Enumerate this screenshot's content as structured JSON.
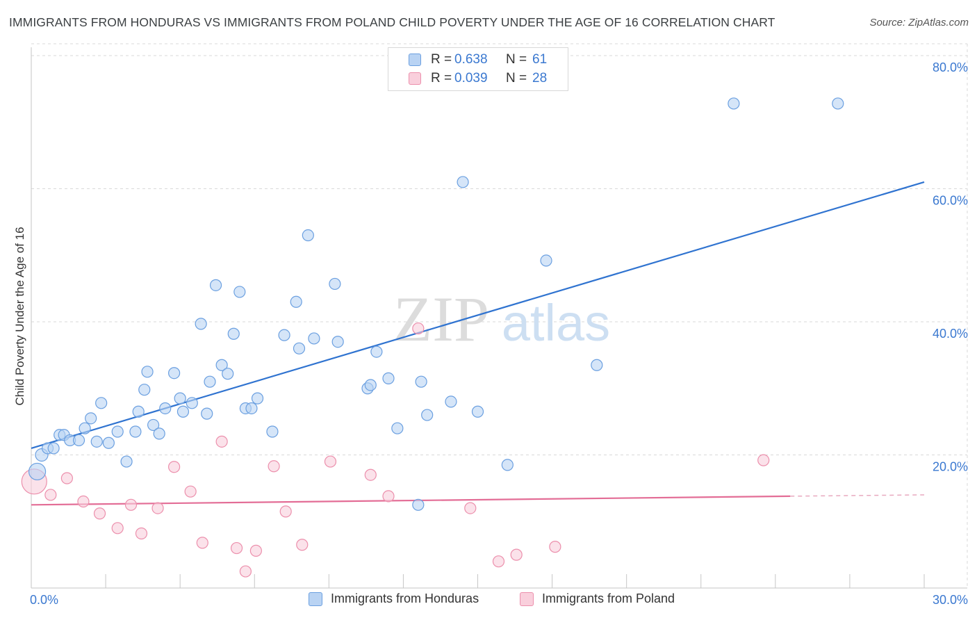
{
  "title": "IMMIGRANTS FROM HONDURAS VS IMMIGRANTS FROM POLAND CHILD POVERTY UNDER THE AGE OF 16 CORRELATION CHART",
  "source": "Source: ZipAtlas.com",
  "watermark": {
    "zip": "ZIP",
    "atlas": "atlas"
  },
  "colors": {
    "honduras_fill": "#b9d3f3",
    "honduras_stroke": "#6a9fe0",
    "honduras_line": "#2f73d0",
    "poland_fill": "#f9cfdc",
    "poland_stroke": "#ec8fac",
    "poland_line": "#e36d96",
    "grid": "#d9d9d9",
    "axis_text": "#3a78d0"
  },
  "legend_top": [
    {
      "r_label": "R =",
      "r_value": "0.638",
      "n_label": "N =",
      "n_value": "61"
    },
    {
      "r_label": "R =",
      "r_value": "0.039",
      "n_label": "N =",
      "n_value": "28"
    }
  ],
  "chart_data": {
    "type": "scatter",
    "title": "IMMIGRANTS FROM HONDURAS VS IMMIGRANTS FROM POLAND CHILD POVERTY UNDER THE AGE OF 16 CORRELATION CHART",
    "xlabel": "",
    "ylabel": "Child Poverty Under the Age of 16",
    "xlim": [
      0,
      30
    ],
    "ylim": [
      0,
      82
    ],
    "x_tick_labels": [
      {
        "value": 0,
        "label": "0.0%"
      },
      {
        "value": 30,
        "label": "30.0%"
      }
    ],
    "y_tick_labels": [
      {
        "value": 20,
        "label": "20.0%"
      },
      {
        "value": 40,
        "label": "40.0%"
      },
      {
        "value": 60,
        "label": "60.0%"
      },
      {
        "value": 80,
        "label": "80.0%"
      }
    ],
    "grid": true,
    "legend_position": "bottom",
    "series": [
      {
        "name": "Immigrants from Honduras",
        "r": 0.638,
        "n": 61,
        "trend": {
          "x0": 0,
          "y0": 21.0,
          "x1": 30,
          "y1": 61.0
        },
        "points": [
          [
            0.2,
            17.5,
            12
          ],
          [
            0.35,
            20.0,
            9
          ],
          [
            0.55,
            21.0,
            8
          ],
          [
            0.75,
            21.0,
            8
          ],
          [
            0.95,
            23.0,
            8
          ],
          [
            1.1,
            23.0,
            8
          ],
          [
            1.3,
            22.2,
            8
          ],
          [
            1.6,
            22.2,
            8
          ],
          [
            1.8,
            24.0,
            8
          ],
          [
            2.0,
            25.5,
            8
          ],
          [
            2.2,
            22.0,
            8
          ],
          [
            2.35,
            27.8,
            8
          ],
          [
            2.6,
            21.8,
            8
          ],
          [
            2.9,
            23.5,
            8
          ],
          [
            3.2,
            19.0,
            8
          ],
          [
            3.5,
            23.5,
            8
          ],
          [
            3.6,
            26.5,
            8
          ],
          [
            3.8,
            29.8,
            8
          ],
          [
            3.9,
            32.5,
            8
          ],
          [
            4.1,
            24.5,
            8
          ],
          [
            4.3,
            23.2,
            8
          ],
          [
            4.5,
            27.0,
            8
          ],
          [
            4.8,
            32.3,
            8
          ],
          [
            5.0,
            28.5,
            8
          ],
          [
            5.1,
            26.5,
            8
          ],
          [
            5.4,
            27.8,
            8
          ],
          [
            5.7,
            39.7,
            8
          ],
          [
            5.9,
            26.2,
            8
          ],
          [
            6.0,
            31.0,
            8
          ],
          [
            6.2,
            45.5,
            8
          ],
          [
            6.4,
            33.5,
            8
          ],
          [
            6.6,
            32.2,
            8
          ],
          [
            6.8,
            38.2,
            8
          ],
          [
            7.0,
            44.5,
            8
          ],
          [
            7.2,
            27.0,
            8
          ],
          [
            7.4,
            27.0,
            8
          ],
          [
            7.6,
            28.5,
            8
          ],
          [
            8.1,
            23.5,
            8
          ],
          [
            8.5,
            38.0,
            8
          ],
          [
            8.9,
            43.0,
            8
          ],
          [
            9.0,
            36.0,
            8
          ],
          [
            9.3,
            53.0,
            8
          ],
          [
            9.5,
            37.5,
            8
          ],
          [
            10.2,
            45.7,
            8
          ],
          [
            10.3,
            37.0,
            8
          ],
          [
            11.3,
            30.0,
            8
          ],
          [
            11.4,
            30.5,
            8
          ],
          [
            11.6,
            35.5,
            8
          ],
          [
            12.0,
            31.5,
            8
          ],
          [
            12.3,
            24.0,
            8
          ],
          [
            13.0,
            12.5,
            8
          ],
          [
            13.1,
            31.0,
            8
          ],
          [
            13.3,
            26.0,
            8
          ],
          [
            14.1,
            28.0,
            8
          ],
          [
            14.5,
            61.0,
            8
          ],
          [
            15.0,
            26.5,
            8
          ],
          [
            16.0,
            18.5,
            8
          ],
          [
            17.3,
            49.2,
            8
          ],
          [
            19.0,
            33.5,
            8
          ],
          [
            23.6,
            72.8,
            8
          ],
          [
            27.1,
            72.8,
            8
          ]
        ]
      },
      {
        "name": "Immigrants from Poland",
        "r": 0.039,
        "n": 28,
        "trend": {
          "x0": 0,
          "y0": 12.5,
          "x1": 25.5,
          "y1": 13.8,
          "dashed_to_x": 30,
          "dashed_to_y": 14.0
        },
        "points": [
          [
            0.1,
            16.0,
            18
          ],
          [
            0.65,
            14.0,
            8
          ],
          [
            1.2,
            16.5,
            8
          ],
          [
            1.75,
            13.0,
            8
          ],
          [
            2.3,
            11.2,
            8
          ],
          [
            2.9,
            9.0,
            8
          ],
          [
            3.35,
            12.5,
            8
          ],
          [
            3.7,
            8.2,
            8
          ],
          [
            4.25,
            12.0,
            8
          ],
          [
            4.8,
            18.2,
            8
          ],
          [
            5.35,
            14.5,
            8
          ],
          [
            5.75,
            6.8,
            8
          ],
          [
            6.4,
            22.0,
            8
          ],
          [
            6.9,
            6.0,
            8
          ],
          [
            7.2,
            2.5,
            8
          ],
          [
            7.55,
            5.6,
            8
          ],
          [
            8.15,
            18.3,
            8
          ],
          [
            8.55,
            11.5,
            8
          ],
          [
            9.1,
            6.5,
            8
          ],
          [
            10.05,
            19.0,
            8
          ],
          [
            11.4,
            17.0,
            8
          ],
          [
            12.0,
            13.8,
            8
          ],
          [
            13.0,
            39.0,
            8
          ],
          [
            14.75,
            12.0,
            8
          ],
          [
            15.7,
            4.0,
            8
          ],
          [
            16.3,
            5.0,
            8
          ],
          [
            17.6,
            6.2,
            8
          ],
          [
            24.6,
            19.2,
            8
          ]
        ]
      }
    ]
  }
}
